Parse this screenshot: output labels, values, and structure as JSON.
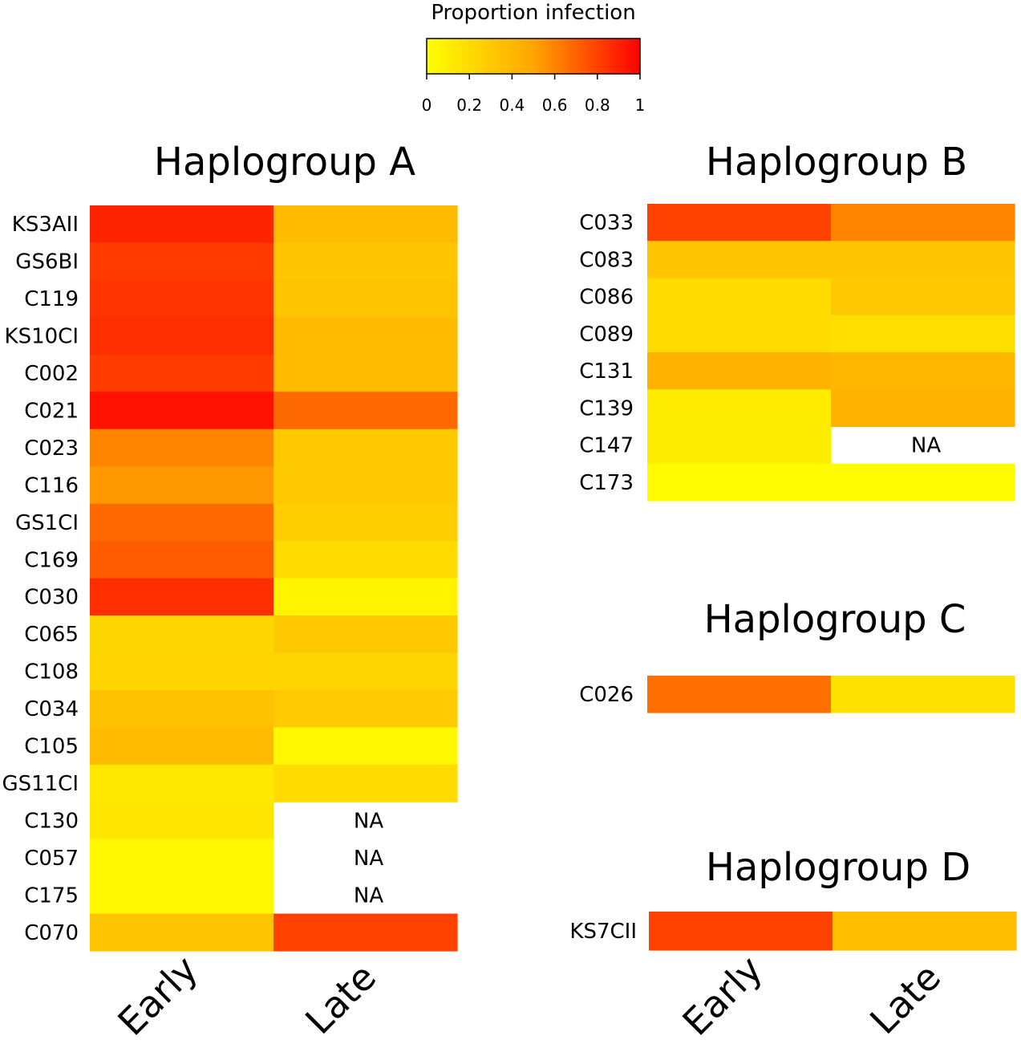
{
  "chart_data": {
    "type": "heatmap",
    "legend": {
      "title": "Proportion infection",
      "min": 0,
      "max": 1,
      "ticks": [
        "0",
        "0.2",
        "0.4",
        "0.6",
        "0.8",
        "1"
      ],
      "colors": [
        "#ffff00",
        "#ffa500",
        "#ff0000"
      ],
      "placement": "top-center"
    },
    "columns": [
      "Early",
      "Late"
    ],
    "na_label": "NA",
    "panels": [
      {
        "title": "Haplogroup A",
        "rows": [
          {
            "label": "KS3AII",
            "early": 0.89,
            "late": 0.38
          },
          {
            "label": "GS6BI",
            "early": 0.82,
            "late": 0.32
          },
          {
            "label": "C119",
            "early": 0.84,
            "late": 0.33
          },
          {
            "label": "KS10CI",
            "early": 0.86,
            "late": 0.38
          },
          {
            "label": "C002",
            "early": 0.82,
            "late": 0.38
          },
          {
            "label": "C021",
            "early": 0.95,
            "late": 0.68
          },
          {
            "label": "C023",
            "early": 0.6,
            "late": 0.3
          },
          {
            "label": "C116",
            "early": 0.54,
            "late": 0.3
          },
          {
            "label": "GS1CI",
            "early": 0.68,
            "late": 0.28
          },
          {
            "label": "C169",
            "early": 0.72,
            "late": 0.2
          },
          {
            "label": "C030",
            "early": 0.86,
            "late": 0.06
          },
          {
            "label": "C065",
            "early": 0.22,
            "late": 0.3
          },
          {
            "label": "C108",
            "early": 0.24,
            "late": 0.23
          },
          {
            "label": "C034",
            "early": 0.34,
            "late": 0.29
          },
          {
            "label": "C105",
            "early": 0.38,
            "late": 0.04
          },
          {
            "label": "GS11CI",
            "early": 0.13,
            "late": 0.2
          },
          {
            "label": "C130",
            "early": 0.14,
            "late": null
          },
          {
            "label": "C057",
            "early": 0.04,
            "late": null
          },
          {
            "label": "C175",
            "early": 0.04,
            "late": null
          },
          {
            "label": "C070",
            "early": 0.32,
            "late": 0.8
          }
        ]
      },
      {
        "title": "Haplogroup B",
        "rows": [
          {
            "label": "C033",
            "early": 0.8,
            "late": 0.6
          },
          {
            "label": "C083",
            "early": 0.32,
            "late": 0.32
          },
          {
            "label": "C086",
            "early": 0.2,
            "late": 0.3
          },
          {
            "label": "C089",
            "early": 0.2,
            "late": 0.18
          },
          {
            "label": "C131",
            "early": 0.42,
            "late": 0.4
          },
          {
            "label": "C139",
            "early": 0.1,
            "late": 0.43
          },
          {
            "label": "C147",
            "early": 0.1,
            "late": null
          },
          {
            "label": "C173",
            "early": 0.02,
            "late": 0.02
          }
        ]
      },
      {
        "title": "Haplogroup C",
        "rows": [
          {
            "label": "C026",
            "early": 0.66,
            "late": 0.16
          }
        ]
      },
      {
        "title": "Haplogroup D",
        "rows": [
          {
            "label": "KS7CII",
            "early": 0.8,
            "late": 0.36
          }
        ]
      }
    ]
  }
}
